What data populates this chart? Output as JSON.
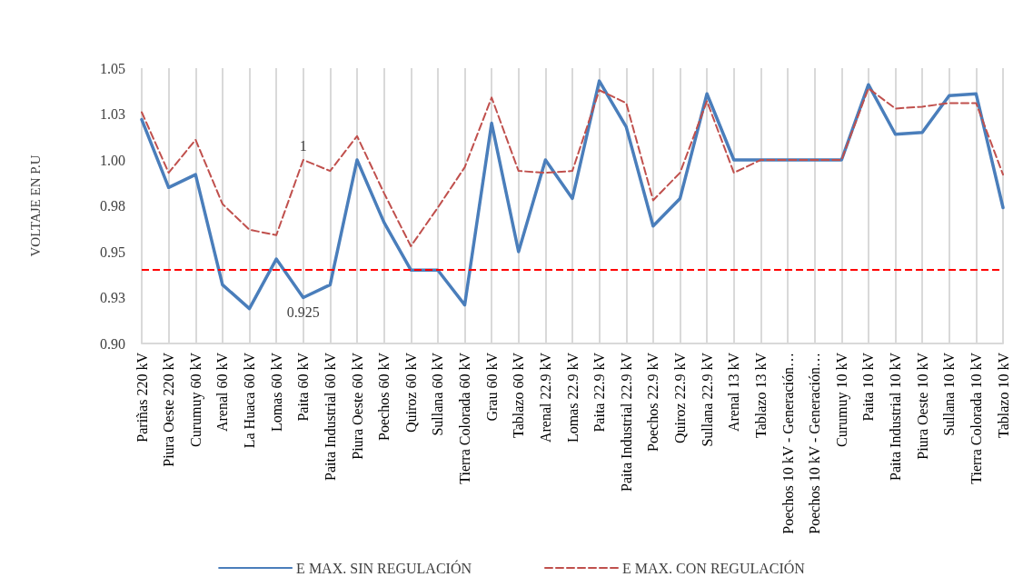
{
  "chart_data": {
    "type": "line",
    "ylabel": "VOLTAJE EN P.U",
    "categories": [
      "Pariñas 220 kV",
      "Piura Oeste 220 kV",
      "Curumuy 60 kV",
      "Arenal 60 kV",
      "La Huaca 60 kV",
      "Lomas 60 kV",
      "Paita 60 kV",
      "Paita Industrial 60 kV",
      "Piura Oeste 60 kV",
      "Poechos 60 kV",
      "Quiroz 60 kV",
      "Sullana 60 kV",
      "Tierra Colorada 60 kV",
      "Grau 60 kV",
      "Tablazo 60 kV",
      "Arenal 22.9 kV",
      "Lomas 22.9 kV",
      "Paita 22.9 kV",
      "Paita Industrial 22.9 kV",
      "Poechos 22.9 kV",
      "Quiroz 22.9 kV",
      "Sullana 22.9 kV",
      "Arenal 13 kV",
      "Tablazo 13 kV",
      "Poechos 10 kV - Generación…",
      "Poechos 10 kV - Generación…",
      "Curumuy 10 kV",
      "Paita 10 kV",
      "Paita Industrial 10 kV",
      "Piura Oeste 10 kV",
      "Sullana 10 kV",
      "Tierra Colorada 10 kV",
      "Tablazo 10 kV"
    ],
    "series": [
      {
        "name": "E MAX. SIN REGULACIÓN",
        "color": "#4a7ebb",
        "line_style": "solid",
        "values": [
          1.022,
          0.985,
          0.992,
          0.932,
          0.919,
          0.946,
          0.925,
          0.932,
          1.0,
          0.966,
          0.94,
          0.94,
          0.921,
          1.02,
          0.95,
          1.0,
          0.979,
          1.043,
          1.018,
          0.964,
          0.979,
          1.036,
          1.0,
          1.0,
          1.0,
          1.0,
          1.0,
          1.041,
          1.014,
          1.015,
          1.035,
          1.036,
          0.974
        ],
        "value_labels": [
          null,
          null,
          null,
          null,
          null,
          null,
          "0.925",
          null,
          null,
          null,
          null,
          null,
          null,
          null,
          null,
          null,
          null,
          null,
          null,
          null,
          null,
          null,
          null,
          null,
          null,
          null,
          null,
          null,
          null,
          null,
          null,
          null,
          null
        ]
      },
      {
        "name": "E MAX. CON REGULACIÓN",
        "color": "#c0504d",
        "line_style": "dashed",
        "values": [
          1.026,
          0.993,
          1.011,
          0.976,
          0.962,
          0.959,
          1.0,
          0.994,
          1.013,
          0.982,
          0.953,
          0.974,
          0.996,
          1.034,
          0.994,
          0.993,
          0.994,
          1.038,
          1.031,
          0.978,
          0.993,
          1.032,
          0.993,
          1.0,
          1.0,
          1.0,
          1.0,
          1.039,
          1.028,
          1.029,
          1.031,
          1.031,
          0.992
        ],
        "value_labels": [
          null,
          null,
          null,
          null,
          null,
          null,
          "1",
          null,
          null,
          null,
          null,
          null,
          null,
          null,
          null,
          null,
          null,
          null,
          null,
          null,
          null,
          null,
          null,
          null,
          null,
          null,
          null,
          null,
          null,
          null,
          null,
          null,
          null
        ]
      }
    ],
    "ref_lines": [
      {
        "axis": "y",
        "value": 0.94,
        "color": "#ff0000",
        "line_style": "dashed"
      }
    ],
    "ylim": [
      0.9,
      1.05
    ],
    "yticks": [
      {
        "value": 0.9,
        "label": "0.90"
      },
      {
        "value": 0.925,
        "label": "0.93"
      },
      {
        "value": 0.95,
        "label": "0.95"
      },
      {
        "value": 0.975,
        "label": "0.98"
      },
      {
        "value": 1.0,
        "label": "1.00"
      },
      {
        "value": 1.025,
        "label": "1.03"
      },
      {
        "value": 1.05,
        "label": "1.05"
      }
    ],
    "grid": "x",
    "legend": "bottom",
    "marker": "none"
  }
}
